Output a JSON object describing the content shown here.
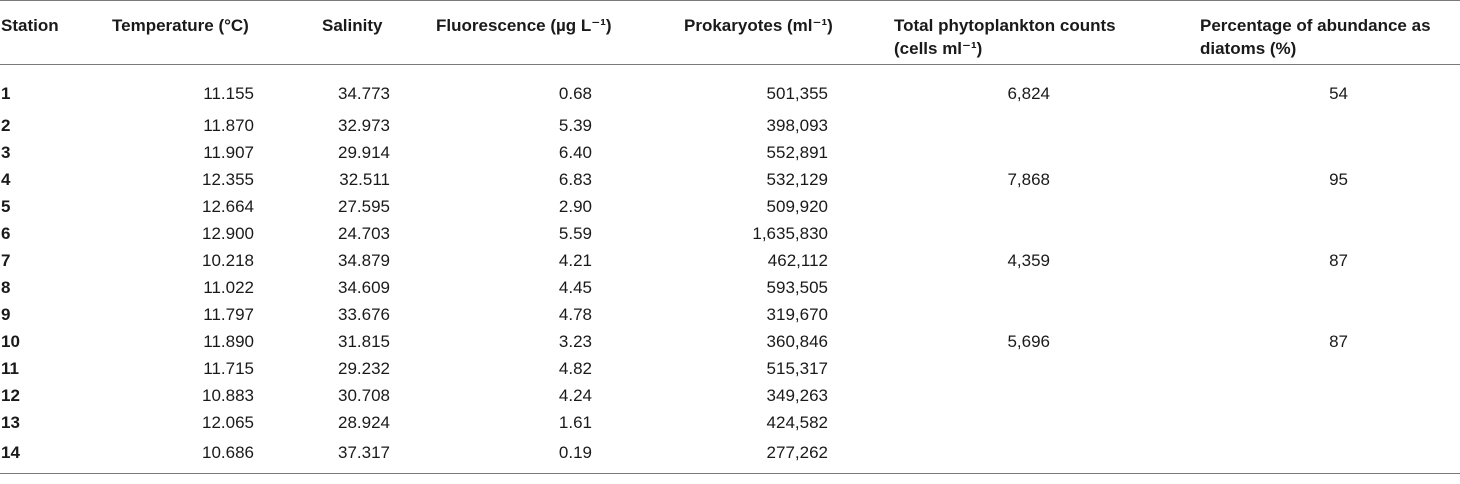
{
  "table": {
    "headers": [
      "Station",
      "Temperature (°C)",
      "Salinity",
      "Fluorescence (µg L⁻¹)",
      "Prokaryotes (ml⁻¹)",
      "Total phytoplankton counts (cells ml⁻¹)",
      "Percentage of abundance as diatoms (%)"
    ],
    "rows": [
      [
        "1",
        "11.155",
        "34.773",
        "0.68",
        "501,355",
        "6,824",
        "54"
      ],
      [
        "2",
        "11.870",
        "32.973",
        "5.39",
        "398,093",
        "",
        ""
      ],
      [
        "3",
        "11.907",
        "29.914",
        "6.40",
        "552,891",
        "",
        ""
      ],
      [
        "4",
        "12.355",
        "32.511",
        "6.83",
        "532,129",
        "7,868",
        "95"
      ],
      [
        "5",
        "12.664",
        "27.595",
        "2.90",
        "509,920",
        "",
        ""
      ],
      [
        "6",
        "12.900",
        "24.703",
        "5.59",
        "1,635,830",
        "",
        ""
      ],
      [
        "7",
        "10.218",
        "34.879",
        "4.21",
        "462,112",
        "4,359",
        "87"
      ],
      [
        "8",
        "11.022",
        "34.609",
        "4.45",
        "593,505",
        "",
        ""
      ],
      [
        "9",
        "11.797",
        "33.676",
        "4.78",
        "319,670",
        "",
        ""
      ],
      [
        "10",
        "11.890",
        "31.815",
        "3.23",
        "360,846",
        "5,696",
        "87"
      ],
      [
        "11",
        "11.715",
        "29.232",
        "4.82",
        "515,317",
        "",
        ""
      ],
      [
        "12",
        "10.883",
        "30.708",
        "4.24",
        "349,263",
        "",
        ""
      ],
      [
        "13",
        "12.065",
        "28.924",
        "1.61",
        "424,582",
        "",
        ""
      ],
      [
        "14",
        "10.686",
        "37.317",
        "0.19",
        "277,262",
        "",
        ""
      ]
    ]
  }
}
